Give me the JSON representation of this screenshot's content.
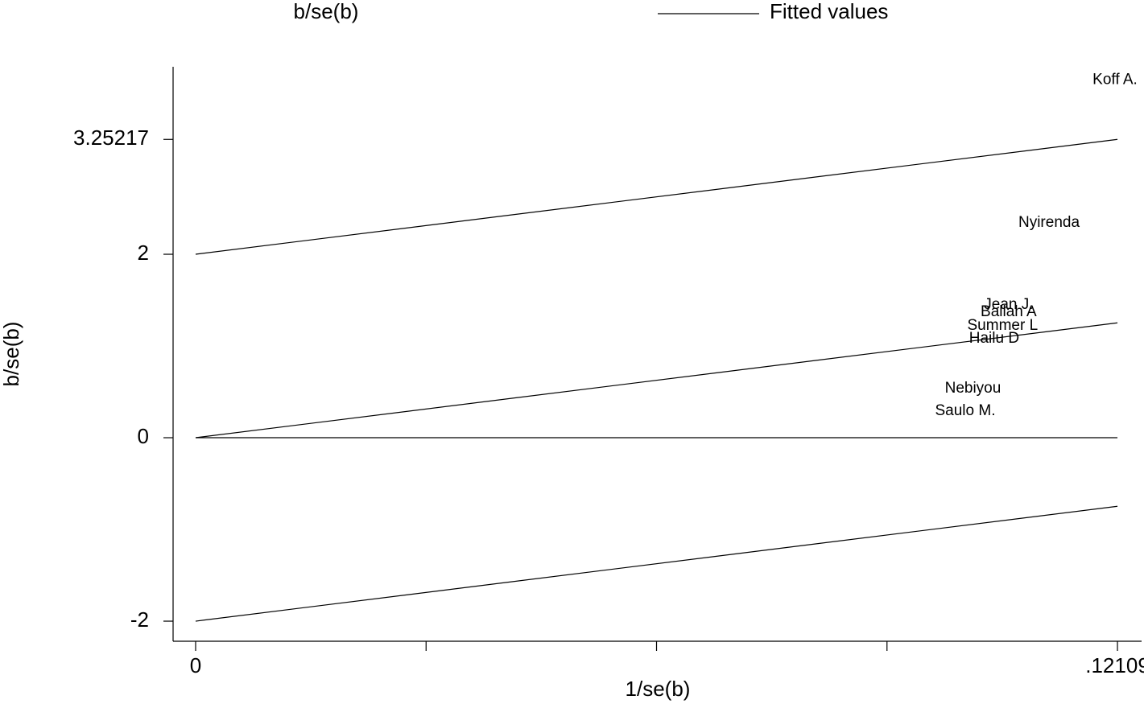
{
  "chart_data": {
    "type": "galbraith",
    "x_label": "1/se(b)",
    "y_label": "b/se(b)",
    "xlim": [
      -0.00296,
      0.12426
    ],
    "ylim": [
      -2.219,
      4.044
    ],
    "xticks": [
      0,
      {
        "value": 0.0302725,
        "label": null
      },
      {
        "value": 0.060545,
        "label": null
      },
      {
        "value": 0.0908175,
        "label": null
      },
      {
        "value": 0.12109,
        "label": ".12109"
      }
    ],
    "yticks": [
      -2,
      0,
      2,
      3.25217
    ],
    "zero_line": 0,
    "series": [
      {
        "name": "b/se(b)",
        "color": "#000000",
        "labels": [
          "Koff A.",
          "Nyirenda",
          "Jean J.",
          "Ballah A",
          "Summer L",
          "Hailu D",
          "Nebiyou",
          "Saulo M."
        ],
        "x": [
          0.12077,
          0.1121,
          0.1068,
          0.1068,
          0.106,
          0.1049,
          0.1021,
          0.1011
        ],
        "values": [
          3.9,
          2.342,
          1.447,
          1.368,
          1.219,
          1.079,
          0.535,
          0.289
        ]
      },
      {
        "name": "Fitted values",
        "color": "#000000",
        "x": [
          0,
          0.12109
        ],
        "values": [
          0,
          1.25217
        ]
      }
    ],
    "bounds": [
      {
        "x": [
          0,
          0.12109
        ],
        "values": [
          2,
          3.25217
        ]
      },
      {
        "x": [
          0,
          0.12109
        ],
        "values": [
          -2,
          -0.74783
        ]
      }
    ]
  }
}
